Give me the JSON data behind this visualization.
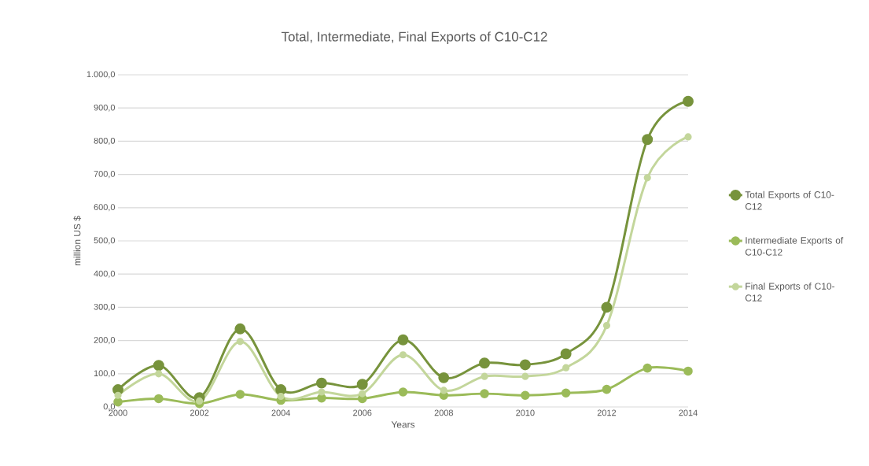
{
  "chart_data": {
    "type": "line",
    "title": "Total, Intermediate, Final Exports of C10-C12",
    "xlabel": "Years",
    "ylabel": "million US $",
    "x": [
      2000,
      2001,
      2002,
      2003,
      2004,
      2005,
      2006,
      2007,
      2008,
      2009,
      2010,
      2011,
      2012,
      2013,
      2014
    ],
    "series": [
      {
        "name": "Total Exports of C10-C12",
        "color": "#77933c",
        "values": [
          52,
          125,
          28,
          235,
          52,
          72,
          68,
          202,
          88,
          132,
          127,
          160,
          300,
          805,
          920
        ]
      },
      {
        "name": "Intermediate Exports of C10-C12",
        "color": "#9bbb59",
        "values": [
          15,
          25,
          10,
          38,
          20,
          27,
          25,
          45,
          35,
          40,
          35,
          42,
          53,
          117,
          108
        ]
      },
      {
        "name": "Final Exports of C10-C12",
        "color": "#c3d69b",
        "values": [
          35,
          100,
          18,
          197,
          32,
          45,
          40,
          157,
          50,
          92,
          92,
          118,
          245,
          690,
          813
        ]
      }
    ],
    "xlim": [
      2000,
      2014
    ],
    "xticks": [
      2000,
      2002,
      2004,
      2006,
      2008,
      2010,
      2012,
      2014
    ],
    "ylim": [
      0,
      1000
    ],
    "yticks": [
      {
        "value": 0,
        "label": "0,0"
      },
      {
        "value": 100,
        "label": "100,0"
      },
      {
        "value": 200,
        "label": "200,0"
      },
      {
        "value": 300,
        "label": "300,0"
      },
      {
        "value": 400,
        "label": "400,0"
      },
      {
        "value": 500,
        "label": "500,0"
      },
      {
        "value": 600,
        "label": "600,0"
      },
      {
        "value": 700,
        "label": "700,0"
      },
      {
        "value": 800,
        "label": "800,0"
      },
      {
        "value": 900,
        "label": "900,0"
      },
      {
        "value": 1000,
        "label": "1.000,0"
      }
    ],
    "grid": "y",
    "legend": "right",
    "marker": "circle",
    "line_style": "solid"
  }
}
